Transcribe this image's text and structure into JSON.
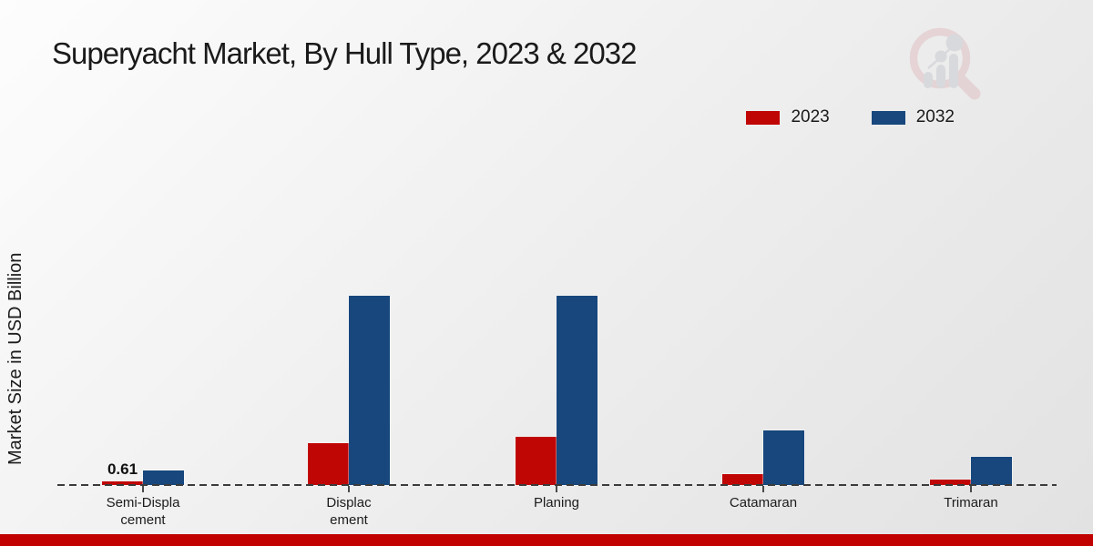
{
  "title": "Superyacht Market, By Hull Type, 2023 & 2032",
  "y_axis_label": "Market Size in USD Billion",
  "legend": {
    "items": [
      {
        "label": "2023",
        "color": "#c00505"
      },
      {
        "label": "2032",
        "color": "#17477d"
      }
    ]
  },
  "colors": {
    "series_2023": "#c00505",
    "series_2032": "#17477d",
    "footer_band": "#c10000",
    "baseline": "#3b3b3b"
  },
  "watermark_icon": "magnifier-bar-chart-logo",
  "chart_data": {
    "type": "bar",
    "title": "Superyacht Market, By Hull Type, 2023 & 2032",
    "ylabel": "Market Size in USD Billion",
    "xlabel": "",
    "categories": [
      "Semi-Displacement",
      "Displacement",
      "Planing",
      "Catamaran",
      "Trimaran"
    ],
    "category_label_lines": [
      [
        "Semi-Displa",
        "cement"
      ],
      [
        "Displac",
        "ement"
      ],
      [
        "Planing"
      ],
      [
        "Catamaran"
      ],
      [
        "Trimaran"
      ]
    ],
    "series": [
      {
        "name": "2023",
        "color": "#c00505",
        "values": [
          0.61,
          7.7,
          8.8,
          2.0,
          1.0
        ]
      },
      {
        "name": "2032",
        "color": "#17477d",
        "values": [
          2.7,
          34.7,
          34.7,
          10.0,
          5.2
        ]
      }
    ],
    "value_labels": [
      {
        "series": "2023",
        "category": "Semi-Displacement",
        "text": "0.61"
      }
    ],
    "ylim": [
      0,
      40
    ],
    "grid": false,
    "baseline_style": "dashed",
    "legend_position": "top-right"
  }
}
